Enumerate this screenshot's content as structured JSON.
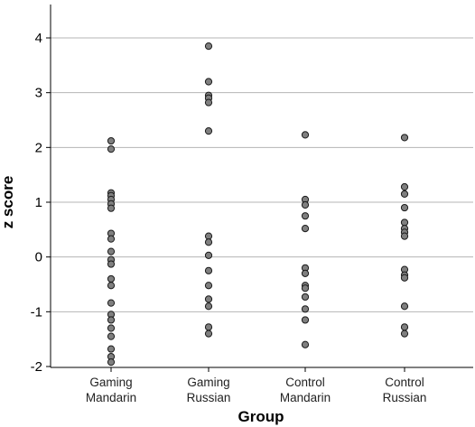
{
  "chart_data": {
    "type": "scatter",
    "xlabel": "Group",
    "ylabel": "z score",
    "ylim": [
      -2,
      4
    ],
    "yticks": [
      -2,
      -1,
      0,
      1,
      2,
      3,
      4
    ],
    "grid": true,
    "point_color": "#7f7f7f",
    "categories": [
      [
        "Gaming",
        "Mandarin"
      ],
      [
        "Gaming",
        "Russian"
      ],
      [
        "Control",
        "Mandarin"
      ],
      [
        "Control",
        "Russian"
      ]
    ],
    "series": [
      {
        "values": [
          2.12,
          1.97,
          1.17,
          1.12,
          1.05,
          0.97,
          0.89,
          0.43,
          0.33,
          0.1,
          -0.05,
          -0.13,
          -0.4,
          -0.52,
          -0.84,
          -1.05,
          -1.15,
          -1.3,
          -1.45,
          -1.68,
          -1.82,
          -1.92
        ]
      },
      {
        "values": [
          3.85,
          3.2,
          2.95,
          2.9,
          2.82,
          2.3,
          0.38,
          0.27,
          0.03,
          -0.25,
          -0.52,
          -0.77,
          -0.9,
          -1.28,
          -1.4
        ]
      },
      {
        "values": [
          2.23,
          1.05,
          0.95,
          0.75,
          0.52,
          -0.2,
          -0.3,
          -0.52,
          -0.57,
          -0.73,
          -0.95,
          -1.15,
          -1.6
        ]
      },
      {
        "values": [
          2.18,
          1.28,
          1.15,
          0.9,
          0.63,
          0.52,
          0.45,
          0.38,
          -0.23,
          -0.33,
          -0.38,
          -0.9,
          -1.28,
          -1.4
        ]
      }
    ]
  }
}
